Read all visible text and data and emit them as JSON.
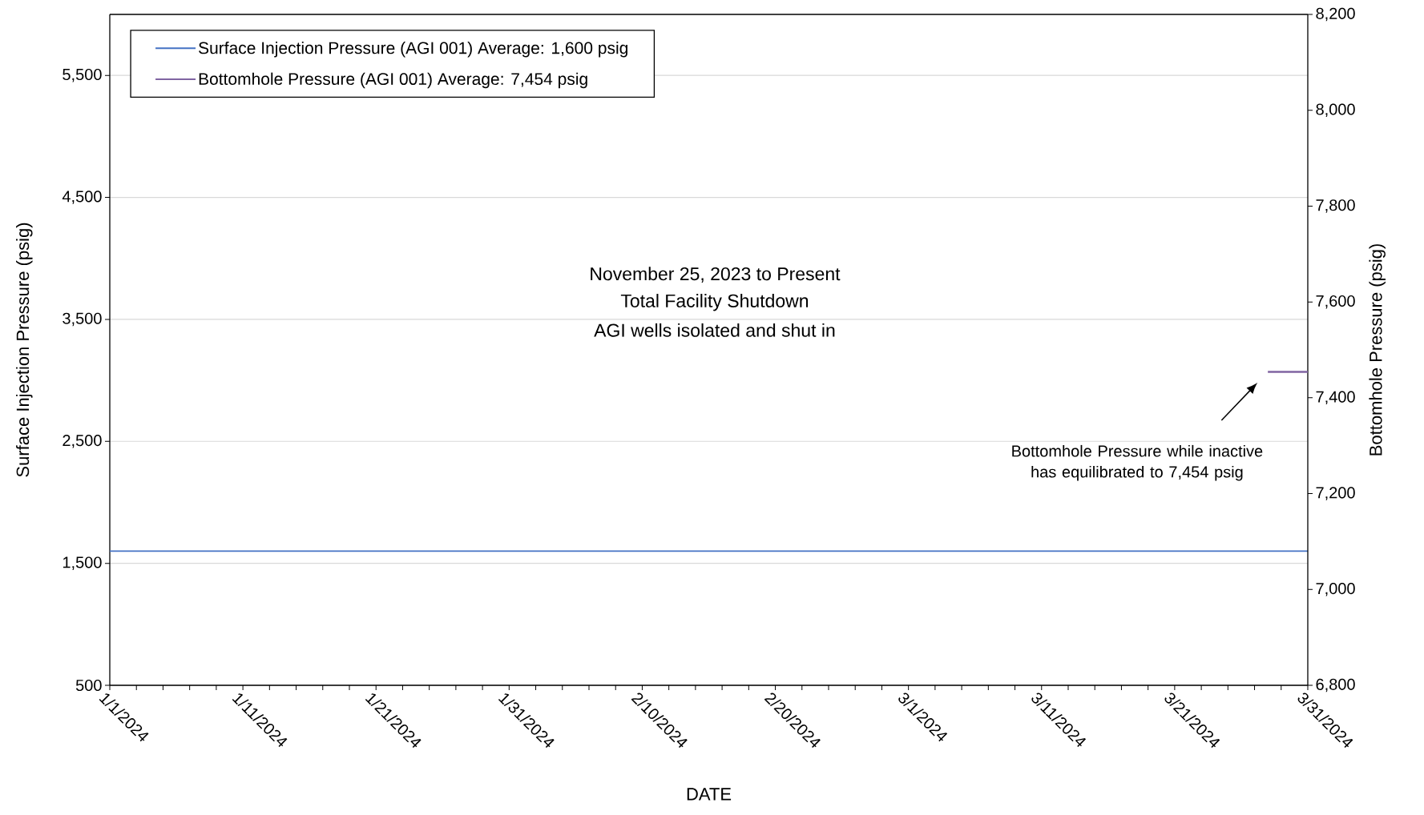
{
  "chart_data": {
    "type": "line",
    "xlabel": "DATE",
    "ylabel": "Surface Injection Pressure (psig)",
    "y2label": "Bottomhole Pressure (psig)",
    "xlim": [
      "2024-01-01",
      "2024-03-31"
    ],
    "xticks": [
      {
        "value": "2024-01-01",
        "label": "1/1/2024"
      },
      {
        "value": "2024-01-03",
        "label": null
      },
      {
        "value": "2024-01-05",
        "label": null
      },
      {
        "value": "2024-01-07",
        "label": null
      },
      {
        "value": "2024-01-09",
        "label": null
      },
      {
        "value": "2024-01-11",
        "label": "1/11/2024"
      },
      {
        "value": "2024-01-13",
        "label": null
      },
      {
        "value": "2024-01-15",
        "label": null
      },
      {
        "value": "2024-01-17",
        "label": null
      },
      {
        "value": "2024-01-19",
        "label": null
      },
      {
        "value": "2024-01-21",
        "label": "1/21/2024"
      },
      {
        "value": "2024-01-23",
        "label": null
      },
      {
        "value": "2024-01-25",
        "label": null
      },
      {
        "value": "2024-01-27",
        "label": null
      },
      {
        "value": "2024-01-29",
        "label": null
      },
      {
        "value": "2024-01-31",
        "label": "1/31/2024"
      },
      {
        "value": "2024-02-02",
        "label": null
      },
      {
        "value": "2024-02-04",
        "label": null
      },
      {
        "value": "2024-02-06",
        "label": null
      },
      {
        "value": "2024-02-08",
        "label": null
      },
      {
        "value": "2024-02-10",
        "label": "2/10/2024"
      },
      {
        "value": "2024-02-12",
        "label": null
      },
      {
        "value": "2024-02-14",
        "label": null
      },
      {
        "value": "2024-02-16",
        "label": null
      },
      {
        "value": "2024-02-18",
        "label": null
      },
      {
        "value": "2024-02-20",
        "label": "2/20/2024"
      },
      {
        "value": "2024-02-22",
        "label": null
      },
      {
        "value": "2024-02-24",
        "label": null
      },
      {
        "value": "2024-02-26",
        "label": null
      },
      {
        "value": "2024-02-28",
        "label": null
      },
      {
        "value": "2024-03-01",
        "label": "3/1/2024"
      },
      {
        "value": "2024-03-03",
        "label": null
      },
      {
        "value": "2024-03-05",
        "label": null
      },
      {
        "value": "2024-03-07",
        "label": null
      },
      {
        "value": "2024-03-09",
        "label": null
      },
      {
        "value": "2024-03-11",
        "label": "3/11/2024"
      },
      {
        "value": "2024-03-13",
        "label": null
      },
      {
        "value": "2024-03-15",
        "label": null
      },
      {
        "value": "2024-03-17",
        "label": null
      },
      {
        "value": "2024-03-19",
        "label": null
      },
      {
        "value": "2024-03-21",
        "label": "3/21/2024"
      },
      {
        "value": "2024-03-23",
        "label": null
      },
      {
        "value": "2024-03-25",
        "label": null
      },
      {
        "value": "2024-03-27",
        "label": null
      },
      {
        "value": "2024-03-29",
        "label": null
      },
      {
        "value": "2024-03-31",
        "label": "3/31/2024"
      }
    ],
    "ylim": [
      500,
      6000
    ],
    "yticks": [
      500,
      {
        "value": 1500,
        "label": "1,500"
      },
      {
        "value": 2500,
        "label": "2,500"
      },
      {
        "value": 3500,
        "label": "3,500"
      },
      {
        "value": 4500,
        "label": "4,500"
      },
      {
        "value": 5500,
        "label": "5,500"
      }
    ],
    "y2lim": [
      6800,
      8200
    ],
    "y2ticks": [
      {
        "value": 6800,
        "label": "6,800"
      },
      {
        "value": 7000,
        "label": "7,000"
      },
      {
        "value": 7200,
        "label": "7,200"
      },
      {
        "value": 7400,
        "label": "7,400"
      },
      {
        "value": 7600,
        "label": "7,600"
      },
      {
        "value": 7800,
        "label": "7,800"
      },
      {
        "value": 8000,
        "label": "8,000"
      },
      {
        "value": 8200,
        "label": "8,200"
      }
    ],
    "grid": "y",
    "legend": "top left",
    "series": [
      {
        "name": "Surface Injection Pressure (AGI 001) Average: 1,600 psig",
        "color": "#4472c4",
        "x": [
          "2024-01-01",
          "2024-03-31"
        ],
        "values": [
          1600,
          1600
        ]
      },
      {
        "name": "Bottomhole Pressure (AGI 001) Average: 7,454 psig",
        "color": "#8064a2",
        "axis": "y2",
        "x": [
          "2024-03-28",
          "2024-03-31"
        ],
        "values": [
          7454,
          7454
        ]
      }
    ],
    "annotations": [
      "November 25, 2023 to Present",
      "Total Facility Shutdown",
      "AGI wells isolated and shut in",
      "Bottomhole Pressure while inactive has equilibrated to 7,454 psig"
    ]
  }
}
